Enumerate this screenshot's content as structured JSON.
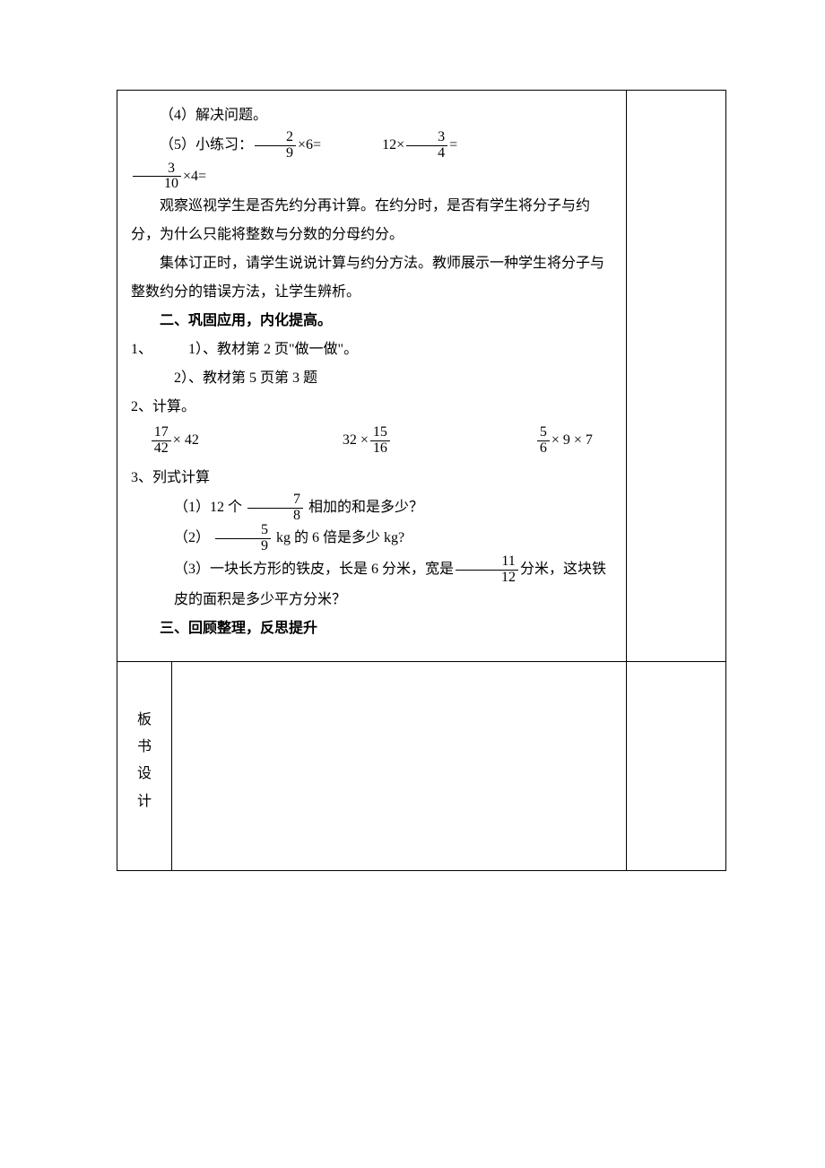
{
  "section4": "（4）解决问题。",
  "section5_lead": "（5）小练习：",
  "ex5": {
    "a_num": "2",
    "a_den": "9",
    "a_tail": "×6=",
    "b_pre": "12×",
    "b_num": "3",
    "b_den": "4",
    "b_tail": "=",
    "c_num": "3",
    "c_den": "10",
    "c_tail": "×4="
  },
  "para_obs1": "观察巡视学生是否先约分再计算。在约分时，是否有学生将分子与约分，为什么只能将整数与分数的分母约分。",
  "para_obs2": "集体订正时，请学生说说计算与约分方法。教师展示一种学生将分子与整数约分的错误方法，让学生辨析。",
  "h2": "二、巩固应用，内化提高。",
  "q1": "1、",
  "q1_1": "1）、教材第 2 页\"做一做\"。",
  "q1_2": "2）、教材第 5 页第 3 题",
  "q2": "2、计算。",
  "calc": {
    "a_num": "17",
    "a_den": "42",
    "a_tail": "× 42",
    "b_pre": "32 ×",
    "b_num": "15",
    "b_den": "16",
    "c_num": "5",
    "c_den": "6",
    "c_tail": "× 9 × 7"
  },
  "q3": "3、列式计算",
  "q3_1_pre": "（1）12 个 ",
  "q3_1_num": "7",
  "q3_1_den": "8",
  "q3_1_post": " 相加的和是多少？",
  "q3_2_pre": "（2）",
  "q3_2_num": "5",
  "q3_2_den": "9",
  "q3_2_post": "kg 的 6 倍是多少 kg?",
  "q3_3_pre": "（3）一块长方形的铁皮，长是 6 分米，宽是",
  "q3_3_num": "11",
  "q3_3_den": "12",
  "q3_3_post": "分米，这块铁",
  "q3_3_line2": "皮的面积是多少平方分米？",
  "h3": "三、回顾整理，反思提升",
  "vlabel": "板书设计",
  "colors": {
    "text": "#000000",
    "border": "#000000",
    "background": "#ffffff"
  },
  "typography": {
    "body_fontsize_pt": 12,
    "font_family": "SimSun",
    "line_height": 2.0
  }
}
